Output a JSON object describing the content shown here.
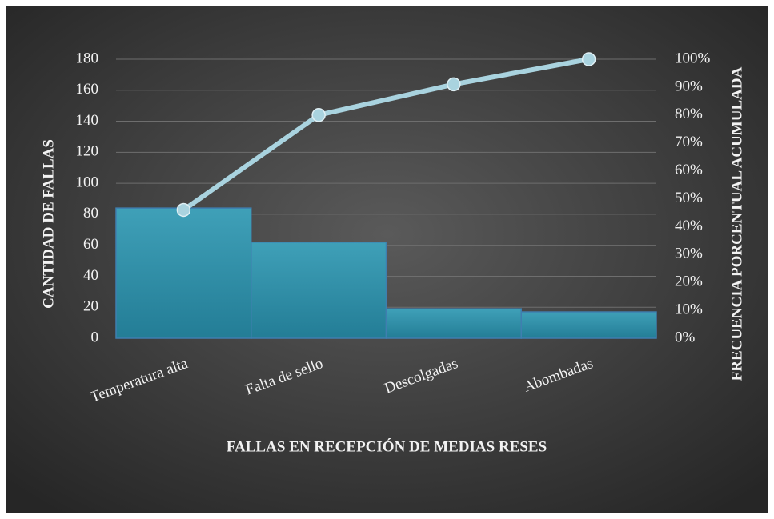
{
  "chart_data": {
    "type": "pareto",
    "xlabel": "FALLAS EN RECEPCIÓN DE MEDIAS RESES",
    "ylabel": "CANTIDAD DE FALLAS",
    "y2label": "FRECUENCIA  PORCENTUAL ACUMULADA",
    "categories": [
      "Temperatura alta",
      "Falta de sello",
      "Descolgadas",
      "Abombadas"
    ],
    "series": [
      {
        "type": "bar",
        "color": "#2f8ea8",
        "values": [
          84,
          62,
          19,
          17
        ]
      },
      {
        "type": "line",
        "axis": "y2",
        "color": "#a9d3df",
        "values": [
          46,
          80,
          91,
          100
        ]
      }
    ],
    "ylim": [
      0,
      180
    ],
    "yticks": [
      0,
      20,
      40,
      60,
      80,
      100,
      120,
      140,
      160,
      180
    ],
    "y2lim": [
      0,
      100
    ],
    "y2ticks": [
      {
        "value": 0,
        "label": "0%"
      },
      {
        "value": 10,
        "label": "10%"
      },
      {
        "value": 20,
        "label": "20%"
      },
      {
        "value": 30,
        "label": "30%"
      },
      {
        "value": 40,
        "label": "40%"
      },
      {
        "value": 50,
        "label": "50%"
      },
      {
        "value": 60,
        "label": "60%"
      },
      {
        "value": 70,
        "label": "70%"
      },
      {
        "value": 80,
        "label": "80%"
      },
      {
        "value": 90,
        "label": "90%"
      },
      {
        "value": 100,
        "label": "100%"
      }
    ],
    "grid": true
  }
}
